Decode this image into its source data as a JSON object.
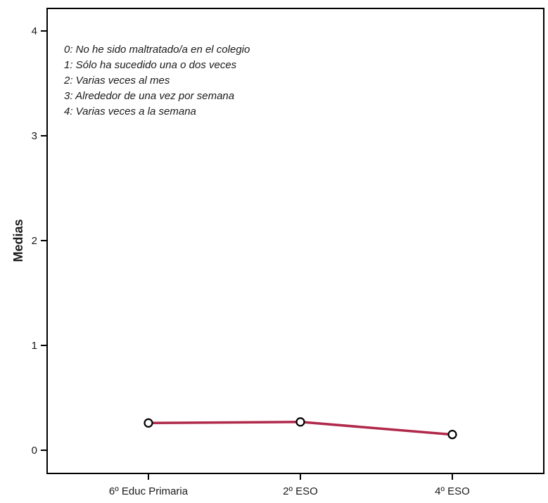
{
  "chart_data": {
    "type": "line",
    "categories": [
      "6º Educ Primaria",
      "2º ESO",
      "4º ESO"
    ],
    "series": [
      {
        "values": [
          0.26,
          0.27,
          0.15
        ],
        "color": "#b0284a"
      }
    ],
    "ylabel": "Medias",
    "xlabel": "",
    "ylim": [
      0,
      4
    ],
    "yticks": [
      "0",
      "1",
      "2",
      "3",
      "4"
    ],
    "grid": false,
    "annotation_lines": [
      "0: No he sido maltratado/a en el colegio",
      "1: Sólo ha sucedido una o dos veces",
      "2: Varias veces al mes",
      "3: Alrededor de una vez por semana",
      "4: Varias veces a la semana"
    ],
    "annotation_placement": "top-left",
    "marker": "open-circle"
  }
}
